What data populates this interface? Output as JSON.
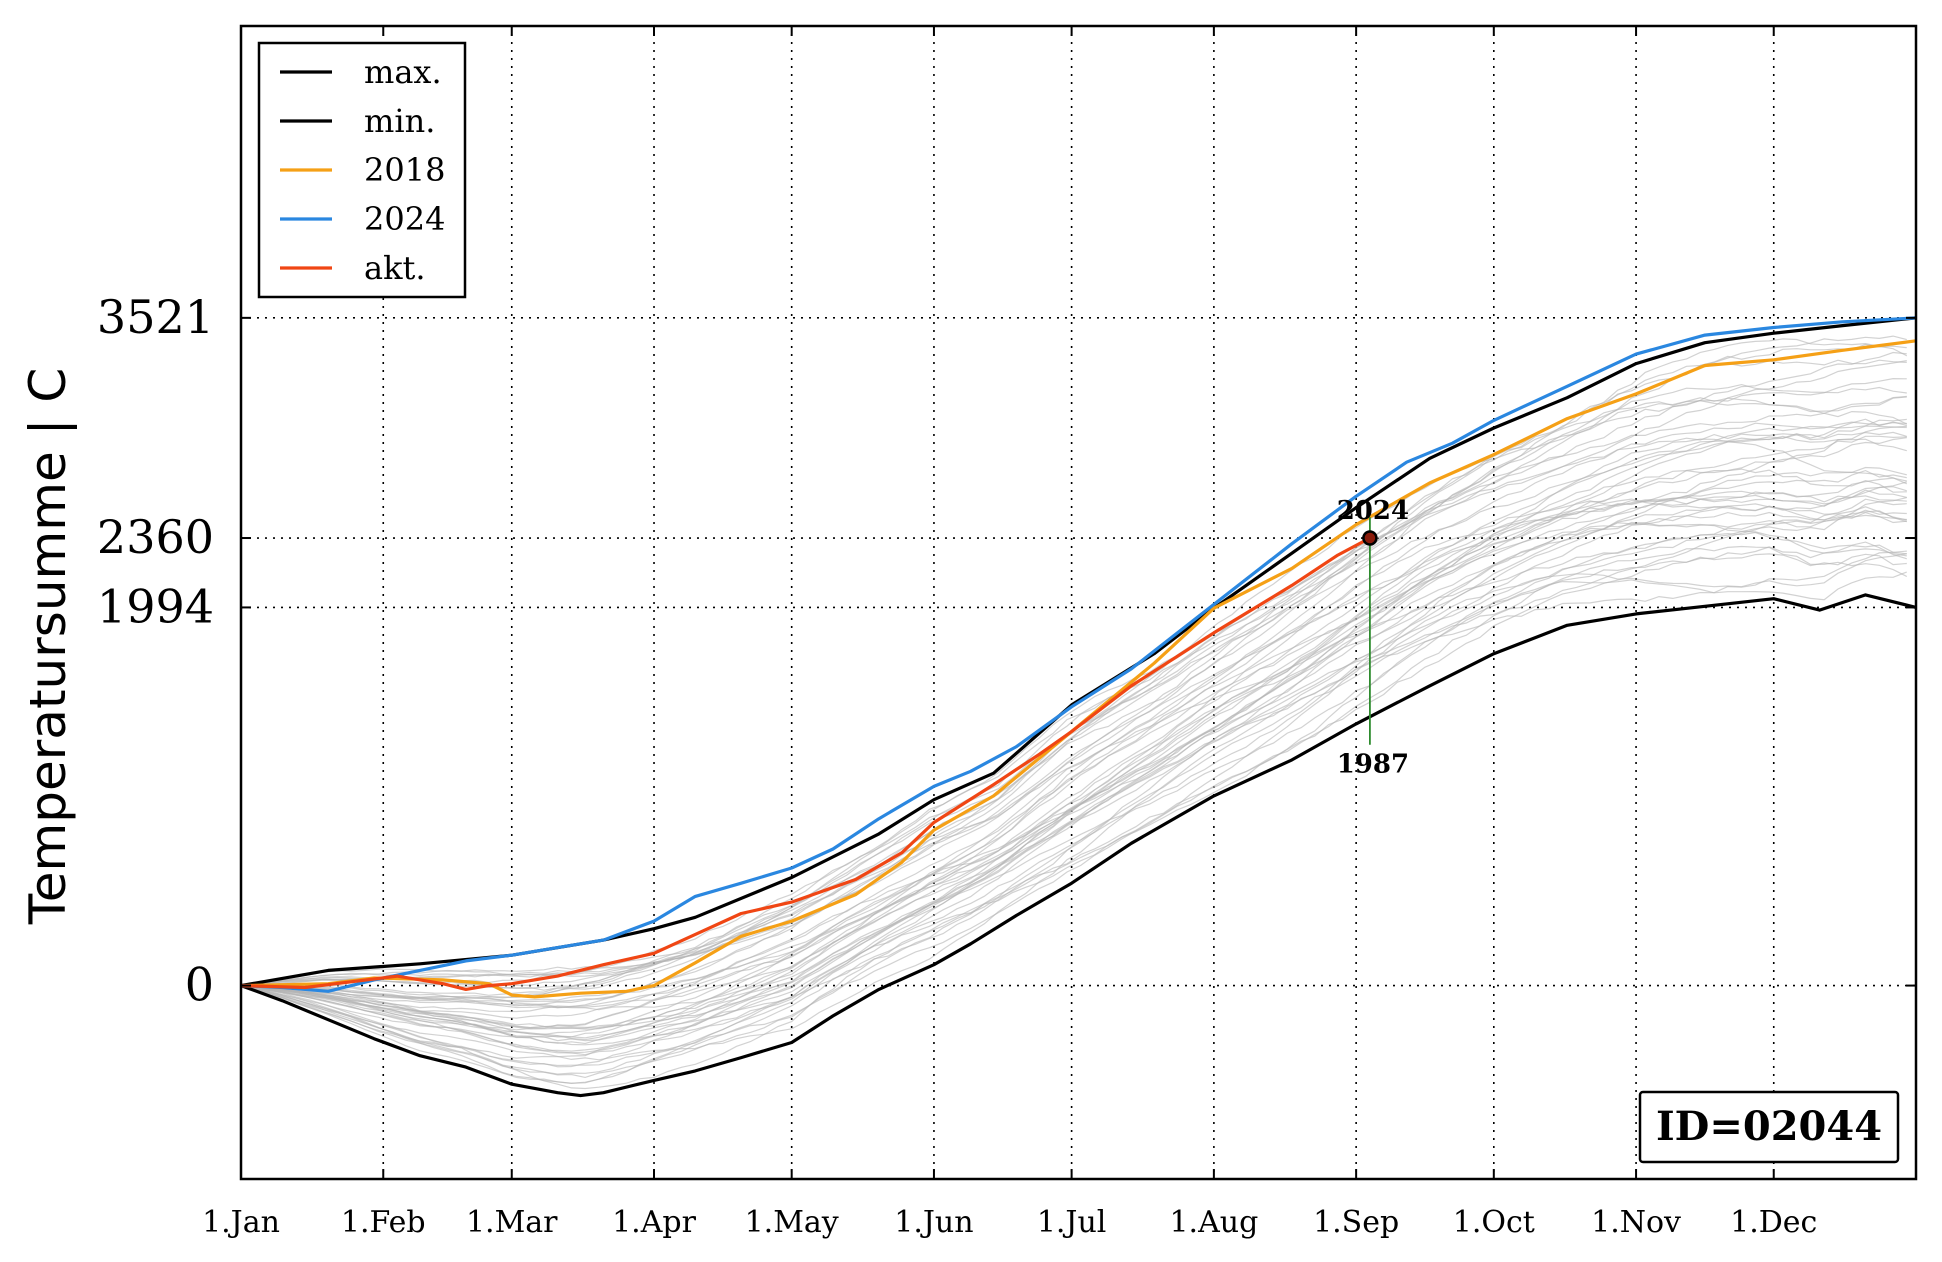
{
  "chart_data": {
    "type": "line",
    "title": "",
    "xlabel": "",
    "ylabel": "Temperatursumme | C",
    "x_ticks": [
      "1.Jan",
      "1.Feb",
      "1.Mar",
      "1.Apr",
      "1.May",
      "1.Jun",
      "1.Jul",
      "1.Aug",
      "1.Sep",
      "1.Oct",
      "1.Nov",
      "1.Dec"
    ],
    "x_tick_days": [
      1,
      32,
      60,
      91,
      121,
      152,
      182,
      213,
      244,
      274,
      305,
      335
    ],
    "y_ticks": [
      0,
      1994,
      2360,
      3521
    ],
    "xlim": [
      1,
      366
    ],
    "ylim": [
      -1020,
      5060
    ],
    "grid": true,
    "legend_position": "top-left",
    "station_id": "ID=02044",
    "colors": {
      "max": "#000000",
      "min": "#000000",
      "y2018": "#f5a016",
      "y2024": "#2a87e0",
      "akt": "#f04614",
      "background_years": "#b4b4b4",
      "marker_line": "#2e8b2e"
    },
    "series": [
      {
        "name": "max.",
        "x": [
          1,
          20,
          40,
          60,
          80,
          91,
          100,
          121,
          140,
          152,
          165,
          182,
          200,
          213,
          230,
          244,
          260,
          274,
          290,
          305,
          320,
          335,
          350,
          366
        ],
        "values": [
          0,
          80,
          115,
          160,
          240,
          300,
          360,
          570,
          800,
          980,
          1120,
          1480,
          1750,
          1990,
          2280,
          2520,
          2780,
          2940,
          3100,
          3280,
          3390,
          3440,
          3480,
          3521
        ]
      },
      {
        "name": "min.",
        "x": [
          1,
          10,
          20,
          30,
          40,
          50,
          60,
          70,
          75,
          80,
          91,
          100,
          110,
          121,
          130,
          140,
          152,
          160,
          170,
          182,
          195,
          213,
          230,
          244,
          260,
          274,
          290,
          305,
          320,
          335,
          345,
          355,
          366
        ],
        "values": [
          0,
          -80,
          -180,
          -280,
          -370,
          -430,
          -520,
          -565,
          -580,
          -565,
          -500,
          -450,
          -380,
          -300,
          -160,
          -20,
          110,
          220,
          370,
          540,
          750,
          1000,
          1190,
          1380,
          1580,
          1750,
          1900,
          1960,
          2000,
          2040,
          1980,
          2060,
          1994
        ]
      },
      {
        "name": "2018",
        "x": [
          1,
          20,
          30,
          45,
          55,
          60,
          65,
          75,
          85,
          91,
          100,
          110,
          121,
          135,
          145,
          152,
          165,
          182,
          200,
          213,
          230,
          244,
          260,
          274,
          290,
          305,
          320,
          335,
          350,
          366
        ],
        "values": [
          0,
          10,
          40,
          30,
          10,
          -50,
          -60,
          -40,
          -30,
          0,
          120,
          260,
          340,
          480,
          650,
          820,
          1000,
          1340,
          1700,
          1990,
          2200,
          2430,
          2650,
          2800,
          2990,
          3120,
          3270,
          3300,
          3350,
          3400
        ]
      },
      {
        "name": "2024",
        "x": [
          1,
          10,
          20,
          30,
          40,
          50,
          60,
          70,
          80,
          91,
          100,
          110,
          121,
          130,
          140,
          152,
          160,
          170,
          182,
          195,
          213,
          230,
          244,
          255,
          265,
          274,
          290,
          305,
          320,
          335,
          350,
          366
        ],
        "values": [
          0,
          -10,
          -30,
          30,
          80,
          130,
          160,
          200,
          240,
          340,
          470,
          540,
          620,
          720,
          880,
          1050,
          1130,
          1260,
          1470,
          1670,
          2010,
          2330,
          2580,
          2760,
          2860,
          2980,
          3160,
          3330,
          3430,
          3470,
          3500,
          3521
        ]
      },
      {
        "name": "akt.",
        "x": [
          1,
          15,
          25,
          35,
          45,
          50,
          55,
          60,
          70,
          80,
          91,
          100,
          110,
          121,
          135,
          145,
          152,
          165,
          175,
          182,
          195,
          213,
          230,
          240,
          247
        ],
        "values": [
          0,
          -10,
          20,
          50,
          10,
          -20,
          0,
          10,
          50,
          110,
          170,
          270,
          380,
          440,
          560,
          700,
          860,
          1060,
          1220,
          1340,
          1580,
          1860,
          2110,
          2270,
          2360
        ]
      }
    ],
    "current_point": {
      "x": 247,
      "y": 2360
    },
    "annotations": {
      "top_label": "2024",
      "bottom_label": "1987",
      "range_top": 2470,
      "range_bottom": 1270
    }
  }
}
